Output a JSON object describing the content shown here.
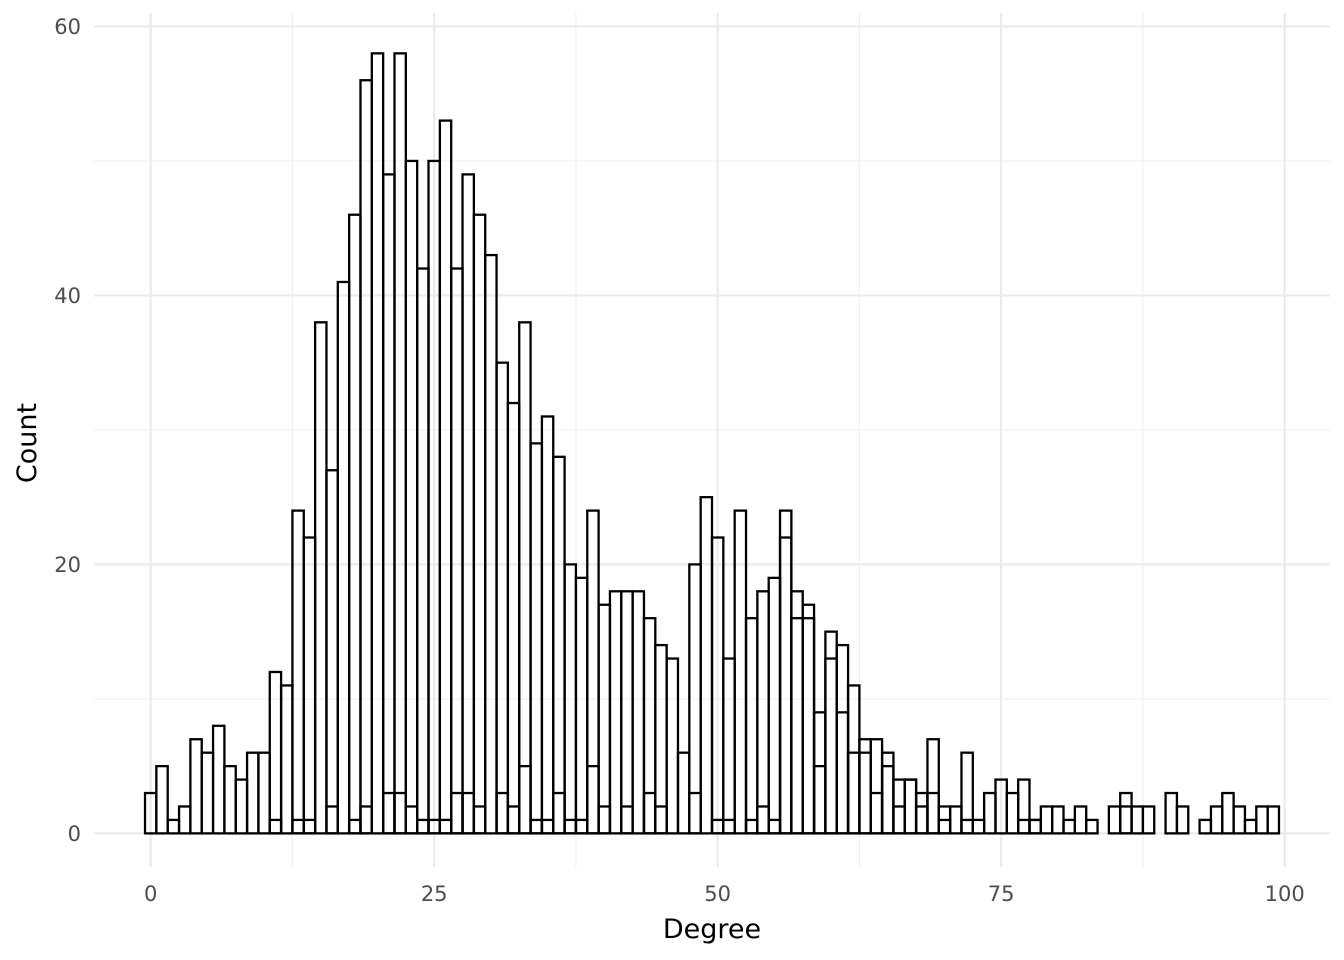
{
  "chart_data": {
    "type": "bar",
    "subtype": "histogram",
    "xlabel": "Degree",
    "ylabel": "Count",
    "xlim": [
      -5,
      104
    ],
    "ylim": [
      -2.5,
      61
    ],
    "xticks": [
      0,
      25,
      50,
      75,
      100
    ],
    "yticks": [
      0,
      20,
      40,
      60
    ],
    "xtick_labels": [
      "0",
      "25",
      "50",
      "75",
      "100"
    ],
    "ytick_labels": [
      "0",
      "20",
      "40",
      "60"
    ],
    "grid": true,
    "bin_width": 1,
    "bar_fill": "#ffffff",
    "bar_outline": "#000000",
    "series": [
      {
        "x": [
          0,
          1,
          2,
          3,
          4,
          5,
          6,
          7,
          8,
          9,
          10,
          11,
          12,
          13,
          14,
          15,
          16,
          17,
          18,
          19,
          20,
          21,
          22,
          23,
          24,
          25,
          26,
          27,
          28,
          29,
          30,
          31,
          32,
          33,
          34,
          35,
          36,
          37,
          38,
          39,
          40,
          41,
          42,
          43,
          44,
          45,
          46,
          47,
          48,
          49,
          50,
          51,
          52,
          53,
          54,
          55,
          56,
          57,
          58,
          59,
          60,
          61,
          62,
          63,
          64,
          65,
          66,
          67,
          68,
          69,
          70,
          71,
          72,
          73,
          74,
          75,
          76,
          77,
          78,
          79,
          80,
          81,
          82,
          83,
          84,
          85,
          86,
          87,
          88,
          89,
          90,
          91,
          92,
          93,
          94,
          95,
          96,
          97,
          98,
          99
        ],
        "values": [
          3,
          5,
          1,
          2,
          7,
          6,
          8,
          5,
          4,
          6,
          6,
          12,
          11,
          24,
          22,
          38,
          27,
          41,
          46,
          56,
          58,
          49,
          58,
          50,
          42,
          50,
          53,
          42,
          49,
          46,
          43,
          35,
          32,
          38,
          29,
          31,
          28,
          20,
          19,
          24,
          17,
          18,
          18,
          18,
          16,
          14,
          13,
          6,
          20,
          25,
          22,
          13,
          24,
          16,
          18,
          19,
          24,
          18,
          17,
          9,
          15,
          14,
          11,
          7,
          7,
          6,
          4,
          4,
          3,
          7,
          2,
          2,
          6,
          1,
          3,
          4,
          3,
          4,
          1,
          2,
          2,
          1,
          2,
          1,
          0,
          2,
          3,
          2,
          2,
          0,
          3,
          2,
          0,
          1,
          2,
          3,
          2,
          1,
          2,
          2
        ]
      },
      {
        "x": [
          0,
          1,
          2,
          3,
          4,
          5,
          6,
          7,
          8,
          9,
          10,
          11,
          12,
          13,
          14,
          15,
          16,
          17,
          18,
          19,
          20,
          21,
          22,
          23,
          24,
          25,
          26,
          27,
          28,
          29,
          30,
          31,
          32,
          33,
          34,
          35,
          36,
          37,
          38,
          39,
          40,
          41,
          42,
          43,
          44,
          45,
          46,
          47,
          48,
          49,
          50,
          51,
          52,
          53,
          54,
          55,
          56,
          57,
          58,
          59,
          60,
          61,
          62,
          63,
          64,
          65,
          66,
          67,
          68,
          69,
          70,
          71,
          72,
          73,
          74,
          75,
          76,
          77,
          78,
          79,
          80,
          81,
          82,
          83,
          84,
          85,
          86,
          87,
          88,
          89,
          90,
          91,
          92,
          93,
          94,
          95,
          96,
          97,
          98,
          99
        ],
        "values": [
          0,
          0,
          0,
          0,
          0,
          0,
          0,
          0,
          0,
          0,
          0,
          1,
          0,
          1,
          1,
          0,
          2,
          0,
          1,
          2,
          0,
          3,
          3,
          2,
          1,
          1,
          1,
          3,
          3,
          2,
          0,
          3,
          2,
          5,
          1,
          1,
          3,
          1,
          1,
          5,
          2,
          0,
          2,
          0,
          3,
          2,
          0,
          0,
          3,
          0,
          1,
          1,
          0,
          1,
          2,
          1,
          22,
          16,
          16,
          5,
          13,
          9,
          6,
          6,
          3,
          5,
          2,
          4,
          2,
          3,
          1,
          0,
          1,
          0,
          0,
          0,
          0,
          1,
          1,
          0,
          0,
          0,
          0,
          0,
          0,
          0,
          2,
          0,
          0,
          0,
          0,
          0,
          0,
          0,
          0,
          0,
          0,
          0,
          0,
          0
        ]
      }
    ]
  }
}
